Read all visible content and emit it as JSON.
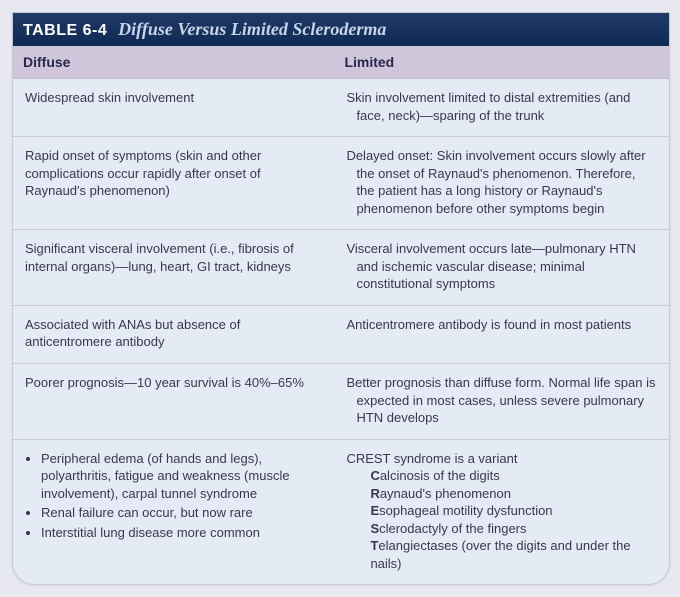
{
  "table": {
    "label": "TABLE",
    "number": "6-4",
    "title": "Diffuse Versus Limited Scleroderma",
    "columns": [
      "Diffuse",
      "Limited"
    ],
    "rows": [
      {
        "diffuse": "Widespread skin involvement",
        "limited": "Skin involvement limited to distal extremities (and face, neck)—sparing of the trunk"
      },
      {
        "diffuse": "Rapid onset of symptoms (skin and other complications occur rapidly after onset of Raynaud's phenomenon)",
        "limited": "Delayed onset: Skin involvement occurs slowly after the onset of Raynaud's phenomenon. Therefore, the patient has a long history or Raynaud's phenomenon before other symptoms begin"
      },
      {
        "diffuse": "Significant visceral involvement (i.e., fibrosis of internal organs)—lung, heart, GI tract, kidneys",
        "limited": "Visceral involvement occurs late—pulmonary HTN and ischemic vascular disease; minimal constitutional symptoms"
      },
      {
        "diffuse": "Associated with ANAs but absence of anticentromere antibody",
        "limited": "Anticentromere antibody is found in most patients"
      },
      {
        "diffuse": "Poorer prognosis—10 year survival is 40%–65%",
        "limited": "Better prognosis than diffuse form. Normal life span is expected in most cases, unless severe pulmonary HTN develops"
      }
    ],
    "last_row": {
      "diffuse_bullets": [
        "Peripheral edema (of hands and legs), polyarthritis, fatigue and weakness (muscle involvement), carpal tunnel syndrome",
        "Renal failure can occur, but now rare",
        "Interstitial lung disease more common"
      ],
      "limited_heading": "CREST syndrome is a variant",
      "crest": [
        {
          "b": "C",
          "rest": "alcinosis of the digits"
        },
        {
          "b": "R",
          "rest": "aynaud's phenomenon"
        },
        {
          "b": "E",
          "rest": "sophageal motility dysfunction"
        },
        {
          "b": "S",
          "rest": "clerodactyly of the fingers"
        },
        {
          "b": "T",
          "rest": "elangiectases (over the digits and under the nails)"
        }
      ]
    }
  },
  "style": {
    "title_bg": "#0e2a55",
    "title_accent": "#c9d3ea",
    "header_bg": "#d0c6dc",
    "body_bg": "#e4ebf4",
    "border": "#c7c9d6",
    "text": "#373752",
    "font_body_pt": 13,
    "font_title_pt": 18
  }
}
